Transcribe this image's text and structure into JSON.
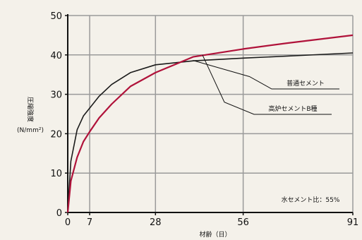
{
  "chart_data": {
    "type": "line",
    "title": "",
    "xlabel": "材齢（日）",
    "ylabel_main": "圧縮強度",
    "ylabel_unit": "(N/mm²)",
    "x_ticks": [
      0,
      7,
      28,
      56,
      91
    ],
    "y_ticks": [
      0,
      10,
      20,
      30,
      40,
      50
    ],
    "xlim": [
      0,
      91
    ],
    "ylim": [
      0,
      50
    ],
    "grid": true,
    "note": "水セメント比：55%",
    "series": [
      {
        "name": "普通セメント",
        "color": "#1a1a1a",
        "x": [
          0,
          1,
          3,
          5,
          7,
          10,
          14,
          20,
          28,
          40,
          56,
          70,
          91
        ],
        "y": [
          0,
          13,
          21,
          24.5,
          26.5,
          29.5,
          32.5,
          35.5,
          37.5,
          38.5,
          39.2,
          39.7,
          40.5
        ]
      },
      {
        "name": "高炉セメントB種",
        "color": "#b0123a",
        "x": [
          0,
          1,
          3,
          5,
          7,
          10,
          14,
          20,
          28,
          40,
          56,
          70,
          91
        ],
        "y": [
          0,
          8,
          14,
          18,
          20.5,
          24,
          27.5,
          32,
          35.5,
          39.5,
          41.5,
          43,
          45
        ]
      }
    ]
  }
}
